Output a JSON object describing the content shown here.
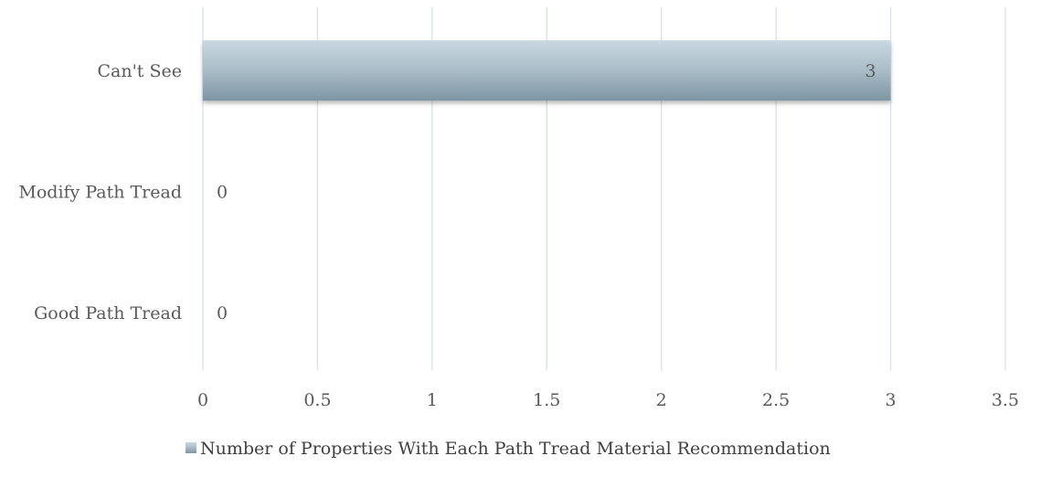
{
  "chart_data": {
    "type": "bar",
    "orientation": "horizontal",
    "categories": [
      "Can't See",
      "Modify Path Tread",
      "Good Path Tread"
    ],
    "series": [
      {
        "name": "Number of Properties With Each Path Tread Material Recommendation",
        "values": [
          3,
          0,
          0
        ]
      }
    ],
    "data_labels": [
      "3",
      "0",
      "0"
    ],
    "xlim": [
      0,
      3.5
    ],
    "xticks": [
      "0",
      "0.5",
      "1",
      "1.5",
      "2",
      "2.5",
      "3",
      "3.5"
    ],
    "title": "",
    "xlabel": "",
    "ylabel": "",
    "grid": "vertical",
    "legend_position": "bottom",
    "colors": {
      "bar_top": "#c9d8e0",
      "bar_bottom": "#7d95a3",
      "grid": "#d9e1e7",
      "text": "#595959"
    }
  }
}
